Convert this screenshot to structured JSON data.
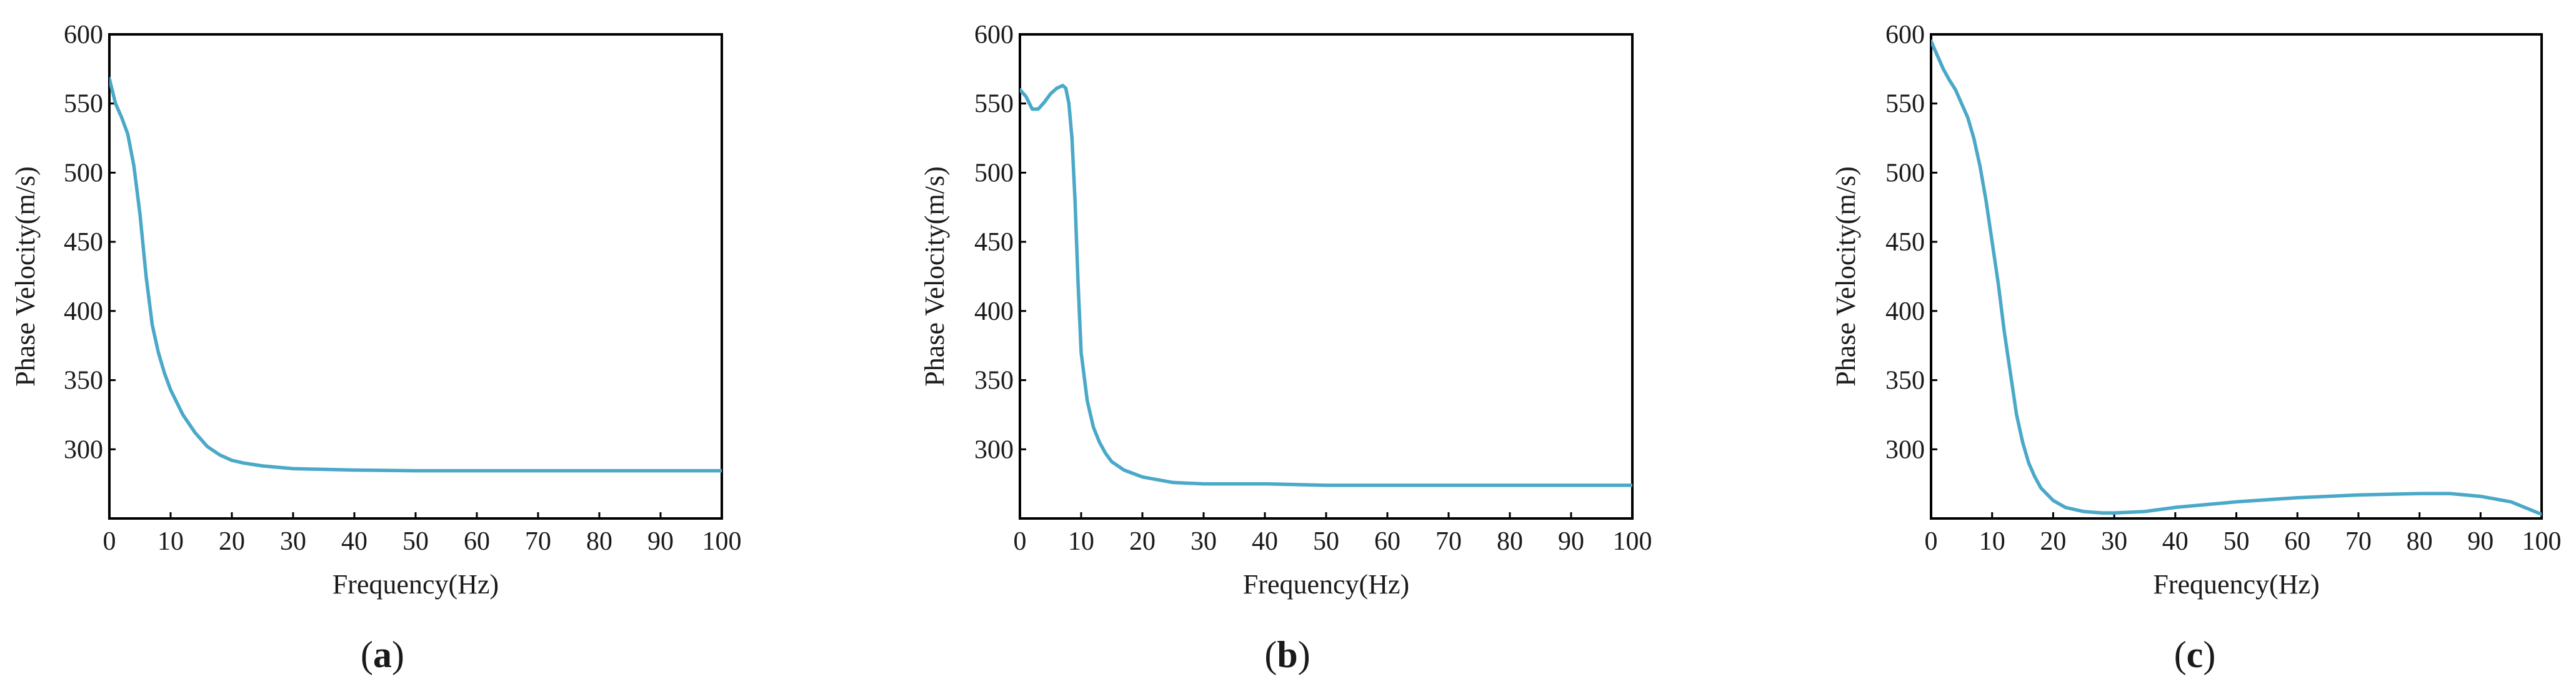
{
  "figure": {
    "panel_labels": [
      "(a)",
      "(b)",
      "(c)"
    ],
    "line_color": "#4aa8c8"
  },
  "chart_data": [
    {
      "type": "line",
      "panel": "(a)",
      "title": "",
      "xlabel": "Frequency(Hz)",
      "ylabel": "Phase Velocity(m/s)",
      "xlim": [
        0,
        100
      ],
      "ylim": [
        250,
        600
      ],
      "xticks": [
        0,
        10,
        20,
        30,
        40,
        50,
        60,
        70,
        80,
        90,
        100
      ],
      "yticks": [
        300,
        350,
        400,
        450,
        500,
        550,
        600
      ],
      "grid": false,
      "series": [
        {
          "x": [
            0,
            1,
            2,
            3,
            4,
            5,
            6,
            7,
            8,
            9,
            10,
            12,
            14,
            16,
            18,
            20,
            22,
            25,
            30,
            35,
            40,
            50,
            60,
            70,
            80,
            90,
            100
          ],
          "y": [
            568,
            550,
            540,
            528,
            505,
            470,
            425,
            390,
            370,
            355,
            343,
            325,
            312,
            302,
            296,
            292,
            290,
            288,
            286,
            285.5,
            285,
            284.5,
            284.5,
            284.5,
            284.5,
            284.5,
            284.5
          ]
        }
      ]
    },
    {
      "type": "line",
      "panel": "(b)",
      "title": "",
      "xlabel": "Frequency(Hz)",
      "ylabel": "Phase Velocity(m/s)",
      "xlim": [
        0,
        100
      ],
      "ylim": [
        250,
        600
      ],
      "xticks": [
        0,
        10,
        20,
        30,
        40,
        50,
        60,
        70,
        80,
        90,
        100
      ],
      "yticks": [
        300,
        350,
        400,
        450,
        500,
        550,
        600
      ],
      "grid": false,
      "series": [
        {
          "x": [
            0,
            1,
            2,
            3,
            4,
            5,
            6,
            7,
            7.5,
            8,
            8.5,
            9,
            9.5,
            10,
            11,
            12,
            13,
            14,
            15,
            17,
            20,
            25,
            30,
            40,
            50,
            60,
            70,
            80,
            90,
            100
          ],
          "y": [
            560,
            555,
            546,
            546,
            551,
            557,
            561,
            563,
            561,
            550,
            525,
            480,
            420,
            370,
            335,
            316,
            305,
            297,
            291,
            285,
            280,
            276,
            275,
            275,
            274,
            274,
            274,
            274,
            274,
            274
          ]
        }
      ]
    },
    {
      "type": "line",
      "panel": "(c)",
      "title": "",
      "xlabel": "Frequency(Hz)",
      "ylabel": "Phase Velocity(m/s)",
      "xlim": [
        0,
        100
      ],
      "ylim": [
        250,
        600
      ],
      "xticks": [
        0,
        10,
        20,
        30,
        40,
        50,
        60,
        70,
        80,
        90,
        100
      ],
      "yticks": [
        300,
        350,
        400,
        450,
        500,
        550,
        600
      ],
      "grid": false,
      "series": [
        {
          "x": [
            0,
            1,
            2,
            3,
            4,
            5,
            6,
            7,
            8,
            9,
            10,
            11,
            12,
            13,
            14,
            15,
            16,
            17,
            18,
            20,
            22,
            25,
            28,
            30,
            35,
            40,
            50,
            60,
            70,
            80,
            85,
            90,
            95,
            100
          ],
          "y": [
            595,
            585,
            575,
            567,
            560,
            550,
            540,
            525,
            505,
            480,
            450,
            420,
            385,
            355,
            325,
            305,
            290,
            280,
            272,
            263,
            258,
            255,
            254,
            254,
            255,
            258,
            262,
            265,
            267,
            268,
            268,
            266,
            262,
            253
          ]
        }
      ]
    }
  ]
}
